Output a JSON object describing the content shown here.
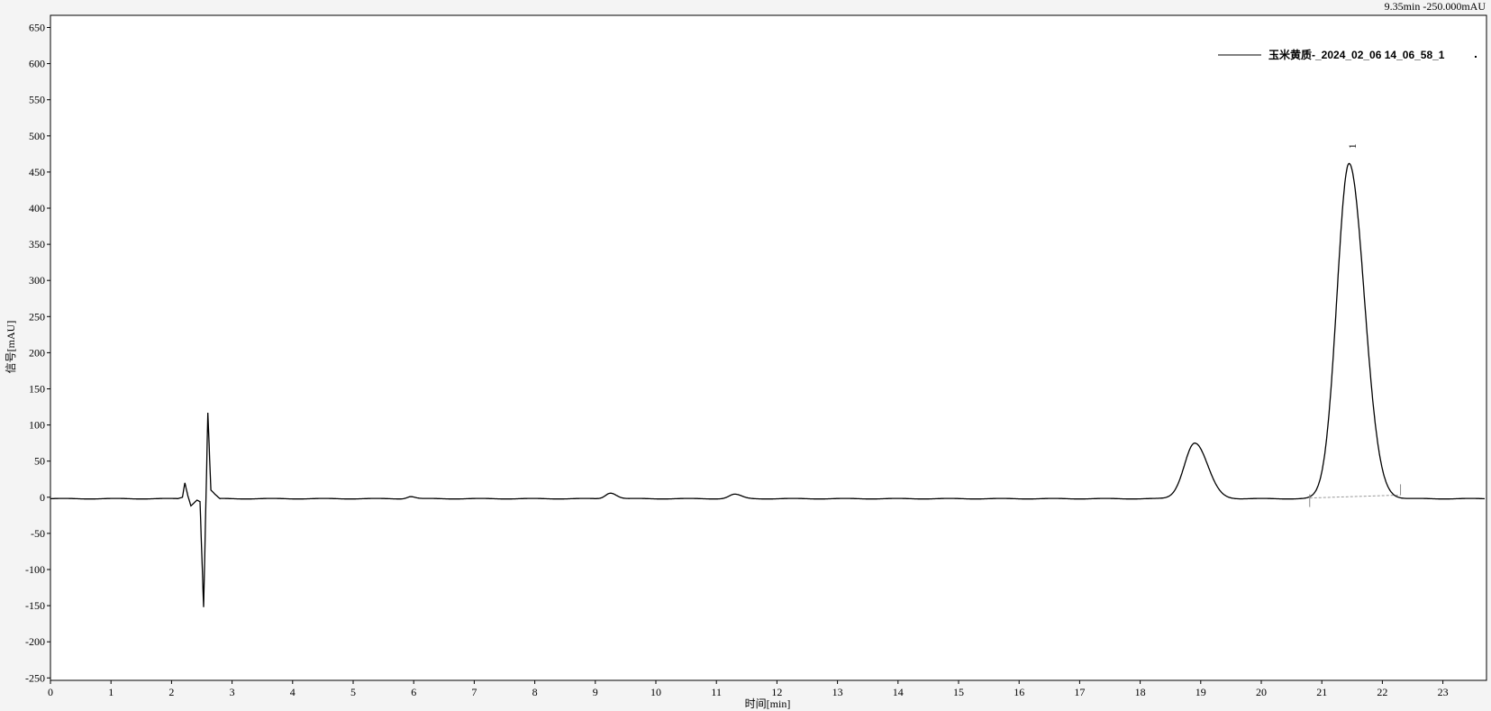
{
  "cursor_readout": "9.35min  -250.000mAU",
  "chart_data": {
    "type": "line",
    "title": "",
    "xlabel": "时间[min]",
    "ylabel": "信号[mAU]",
    "xlim": [
      0,
      23.7
    ],
    "ylim": [
      -250,
      650
    ],
    "x_ticks": [
      0,
      1,
      2,
      3,
      4,
      5,
      6,
      7,
      8,
      9,
      10,
      11,
      12,
      13,
      14,
      15,
      16,
      17,
      18,
      19,
      20,
      21,
      22,
      23
    ],
    "y_ticks": [
      -250,
      -200,
      -150,
      -100,
      -50,
      0,
      50,
      100,
      150,
      200,
      250,
      300,
      350,
      400,
      450,
      500,
      550,
      600,
      650
    ],
    "grid": false,
    "legend": {
      "position": "top-right",
      "entries": [
        "玉米黄质-_2024_02_06 14_06_58_1"
      ]
    },
    "line_color": "#000000",
    "baseline_level": -2,
    "series": [
      {
        "name": "玉米黄质-_2024_02_06 14_06_58_1",
        "peaks": [
          {
            "rt": 5.95,
            "height": 3,
            "sigma": 0.06
          },
          {
            "rt": 9.25,
            "height": 8,
            "sigma": 0.08
          },
          {
            "rt": 11.3,
            "height": 6,
            "sigma": 0.09
          },
          {
            "rt": 18.9,
            "height": 77,
            "sigma": 0.17
          },
          {
            "rt": 21.45,
            "height": 464,
            "sigma": 0.2
          }
        ],
        "disturbance": [
          [
            2.1,
            -2
          ],
          [
            2.18,
            0
          ],
          [
            2.22,
            20
          ],
          [
            2.27,
            2
          ],
          [
            2.32,
            -12
          ],
          [
            2.42,
            -4
          ],
          [
            2.47,
            -6
          ],
          [
            2.53,
            -152
          ],
          [
            2.6,
            117
          ],
          [
            2.65,
            10
          ],
          [
            2.72,
            4
          ],
          [
            2.8,
            -2
          ]
        ]
      }
    ],
    "annotations": [
      {
        "label": "1",
        "x": 21.5,
        "y": 482,
        "integration_baseline": [
          [
            20.8,
            -1
          ],
          [
            22.3,
            3
          ]
        ]
      }
    ]
  }
}
